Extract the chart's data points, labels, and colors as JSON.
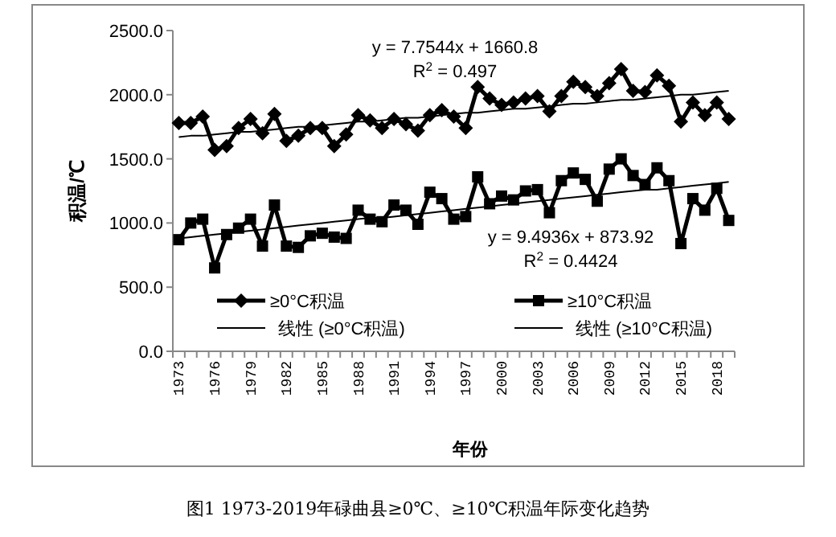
{
  "chart_data": {
    "type": "line",
    "ylabel": "积温/℃",
    "xlabel": "年份",
    "categories": [
      "1973",
      null,
      null,
      "1976",
      null,
      null,
      "1979",
      null,
      null,
      "1982",
      null,
      null,
      "1985",
      null,
      null,
      "1988",
      null,
      null,
      "1991",
      null,
      null,
      "1994",
      null,
      null,
      "1997",
      null,
      null,
      "2000",
      null,
      null,
      "2003",
      null,
      null,
      "2006",
      null,
      null,
      "2009",
      null,
      null,
      "2012",
      null,
      null,
      "2015",
      null,
      null,
      "2018",
      null
    ],
    "ylim": [
      0,
      2500
    ],
    "yticks": [
      {
        "value": 0,
        "label": "0.0"
      },
      {
        "value": 500,
        "label": "500.0"
      },
      {
        "value": 1000,
        "label": "1000.0"
      },
      {
        "value": 1500,
        "label": "1500.0"
      },
      {
        "value": 2000,
        "label": "2000.0"
      },
      {
        "value": 2500,
        "label": "2500.0"
      }
    ],
    "legend": "bottom",
    "series": [
      {
        "name": "≥0°C积温",
        "color": "#000000",
        "marker": "diamond",
        "values": [
          1780,
          1780,
          1830,
          1570,
          1600,
          1740,
          1810,
          1700,
          1850,
          1640,
          1680,
          1740,
          1740,
          1600,
          1690,
          1840,
          1800,
          1740,
          1810,
          1770,
          1720,
          1840,
          1880,
          1830,
          1740,
          2060,
          1970,
          1920,
          1940,
          1970,
          1990,
          1870,
          1990,
          2100,
          2060,
          1990,
          2090,
          2200,
          2030,
          2020,
          2150,
          2070,
          1790,
          1940,
          1840,
          1940,
          1810
        ]
      },
      {
        "name": "≥10°C积温",
        "color": "#000000",
        "marker": "square",
        "values": [
          870,
          1000,
          1030,
          650,
          910,
          960,
          1030,
          820,
          1140,
          820,
          810,
          900,
          920,
          890,
          880,
          1100,
          1030,
          1010,
          1140,
          1100,
          990,
          1240,
          1190,
          1030,
          1050,
          1360,
          1150,
          1210,
          1180,
          1250,
          1260,
          1080,
          1330,
          1390,
          1340,
          1170,
          1420,
          1500,
          1370,
          1300,
          1430,
          1330,
          840,
          1190,
          1100,
          1270,
          1020
        ]
      },
      {
        "name": "线性 (≥0°C积温)",
        "color": "#000000",
        "marker": "none",
        "values": [
          1670,
          1680,
          1680,
          1690,
          1700,
          1710,
          1710,
          1720,
          1730,
          1740,
          1750,
          1750,
          1760,
          1770,
          1780,
          1790,
          1790,
          1800,
          1810,
          1820,
          1820,
          1830,
          1840,
          1850,
          1860,
          1860,
          1870,
          1880,
          1890,
          1890,
          1900,
          1910,
          1920,
          1930,
          1930,
          1940,
          1950,
          1960,
          1960,
          1970,
          1980,
          1990,
          2000,
          2000,
          2010,
          2020,
          2030
        ]
      },
      {
        "name": "线性 (≥10°C积温)",
        "color": "#000000",
        "marker": "none",
        "values": [
          880,
          890,
          900,
          910,
          920,
          930,
          940,
          950,
          960,
          970,
          980,
          990,
          1000,
          1010,
          1020,
          1030,
          1040,
          1040,
          1050,
          1060,
          1070,
          1080,
          1090,
          1100,
          1110,
          1120,
          1130,
          1140,
          1150,
          1160,
          1170,
          1180,
          1190,
          1200,
          1210,
          1220,
          1230,
          1240,
          1250,
          1260,
          1260,
          1270,
          1280,
          1290,
          1300,
          1310,
          1320
        ]
      }
    ],
    "annotations": [
      "y = 7.7544x + 1660.8\nR$^{2}$ = 0.497",
      "y = 9.4936x + 873.92\nR$^{2}$ = 0.4424",
      "图1 1973-2019年碌曲县≥0℃、≥10℃积温年际变化趋势"
    ]
  }
}
